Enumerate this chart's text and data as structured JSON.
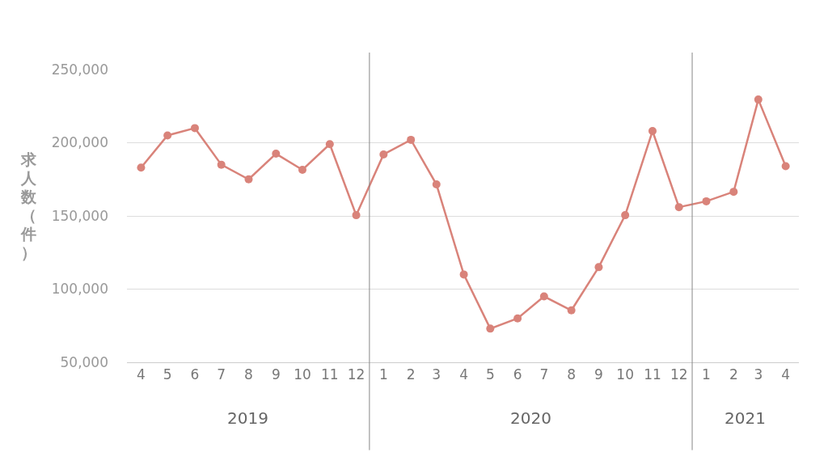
{
  "chart_data": {
    "type": "line",
    "ylabel": "求人数（件）",
    "x": [
      "2019-04",
      "2019-05",
      "2019-06",
      "2019-07",
      "2019-08",
      "2019-09",
      "2019-10",
      "2019-11",
      "2019-12",
      "2020-01",
      "2020-02",
      "2020-03",
      "2020-04",
      "2020-05",
      "2020-06",
      "2020-07",
      "2020-08",
      "2020-09",
      "2020-10",
      "2020-11",
      "2020-12",
      "2021-01",
      "2021-02",
      "2021-03",
      "2021-04"
    ],
    "series": [
      {
        "color": "#d9837a",
        "values": [
          183000,
          205000,
          210000,
          185000,
          175000,
          192500,
          181500,
          199000,
          150500,
          192000,
          202000,
          171500,
          110000,
          73000,
          80000,
          95000,
          85500,
          115000,
          150500,
          208000,
          156000,
          160000,
          166500,
          229500,
          184000
        ]
      }
    ],
    "xlim": [
      "2019-03-16",
      "2021-04-16"
    ],
    "xticks": [
      {
        "value": "2019-04",
        "label": "4"
      },
      {
        "value": "2019-05",
        "label": "5"
      },
      {
        "value": "2019-06",
        "label": "6"
      },
      {
        "value": "2019-07",
        "label": "7"
      },
      {
        "value": "2019-08",
        "label": "8"
      },
      {
        "value": "2019-09",
        "label": "9"
      },
      {
        "value": "2019-10",
        "label": "10"
      },
      {
        "value": "2019-11",
        "label": "11"
      },
      {
        "value": "2019-12",
        "label": "12"
      },
      {
        "value": "2020-01",
        "label": "1"
      },
      {
        "value": "2020-02",
        "label": "2"
      },
      {
        "value": "2020-03",
        "label": "3"
      },
      {
        "value": "2020-04",
        "label": "4"
      },
      {
        "value": "2020-05",
        "label": "5"
      },
      {
        "value": "2020-06",
        "label": "6"
      },
      {
        "value": "2020-07",
        "label": "7"
      },
      {
        "value": "2020-08",
        "label": "8"
      },
      {
        "value": "2020-09",
        "label": "9"
      },
      {
        "value": "2020-10",
        "label": "10"
      },
      {
        "value": "2020-11",
        "label": "11"
      },
      {
        "value": "2020-12",
        "label": "12"
      },
      {
        "value": "2021-01",
        "label": "1"
      },
      {
        "value": "2021-02",
        "label": "2"
      },
      {
        "value": "2021-03",
        "label": "3"
      },
      {
        "value": "2021-04",
        "label": "4"
      }
    ],
    "ylim": [
      50000,
      250000
    ],
    "yticks": [
      {
        "value": 50000,
        "label": "50,000"
      },
      {
        "value": 100000,
        "label": "100,000"
      },
      {
        "value": 150000,
        "label": "150,000"
      },
      {
        "value": 200000,
        "label": "200,000"
      },
      {
        "value": 250000,
        "label": "250,000"
      }
    ],
    "ref_lines": [
      {
        "axis": "x",
        "value": "2019-12-16",
        "color": "#888888"
      },
      {
        "axis": "x",
        "value": "2020-12-16",
        "color": "#888888"
      }
    ],
    "annotations": [
      "2019",
      "2020",
      "2021"
    ],
    "grid": "y",
    "marker": "circle",
    "line_style": "solid"
  }
}
